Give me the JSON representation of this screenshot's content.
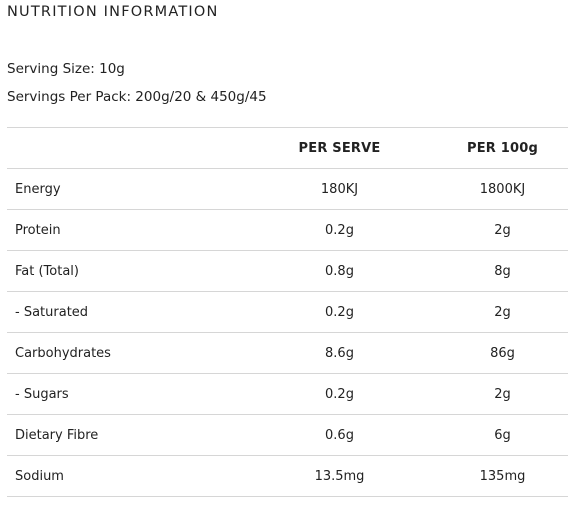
{
  "title": "NUTRITION INFORMATION",
  "serving_size": "Serving Size: 10g",
  "servings_per_pack": "Servings Per Pack: 200g/20 & 450g/45",
  "table": {
    "headers": [
      "",
      "PER SERVE",
      "PER 100g"
    ],
    "rows": [
      {
        "name": "Energy",
        "per_serve": "180KJ",
        "per_100g": "1800KJ"
      },
      {
        "name": "Protein",
        "per_serve": "0.2g",
        "per_100g": "2g"
      },
      {
        "name": "Fat (Total)",
        "per_serve": "0.8g",
        "per_100g": "8g"
      },
      {
        "name": "- Saturated",
        "per_serve": "0.2g",
        "per_100g": "2g"
      },
      {
        "name": "Carbohydrates",
        "per_serve": "8.6g",
        "per_100g": "86g"
      },
      {
        "name": "- Sugars",
        "per_serve": "0.2g",
        "per_100g": "2g"
      },
      {
        "name": "Dietary Fibre",
        "per_serve": "0.6g",
        "per_100g": "6g"
      },
      {
        "name": "Sodium",
        "per_serve": "13.5mg",
        "per_100g": "135mg"
      }
    ]
  }
}
